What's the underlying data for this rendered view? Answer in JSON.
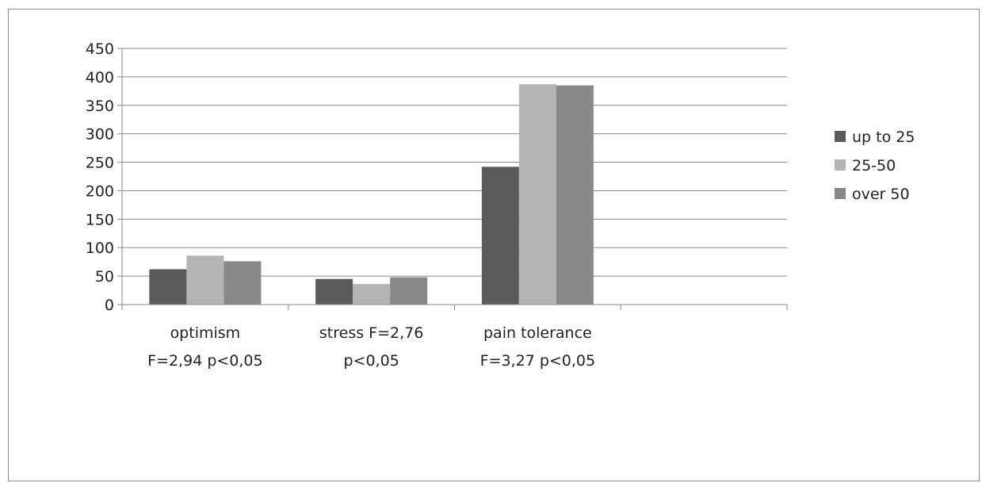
{
  "chart_data": {
    "type": "bar",
    "categories": [
      [
        "optimism",
        "F=2,94 p<0,05"
      ],
      [
        "stress F=2,76",
        "p<0,05"
      ],
      [
        "pain tolerance",
        "F=3,27 p<0,05"
      ],
      [
        "",
        ""
      ]
    ],
    "series": [
      {
        "name": "up to 25",
        "color": "#5a5a5a",
        "values": [
          62,
          45,
          242,
          null
        ]
      },
      {
        "name": "25-50",
        "color": "#b4b4b4",
        "values": [
          86,
          36,
          387,
          null
        ]
      },
      {
        "name": "over 50",
        "color": "#888888",
        "values": [
          76,
          48,
          385,
          null
        ]
      }
    ],
    "ylim": [
      0,
      450
    ],
    "yticks": [
      0,
      50,
      100,
      150,
      200,
      250,
      300,
      350,
      400,
      450
    ],
    "grid": true,
    "legend": "right"
  }
}
